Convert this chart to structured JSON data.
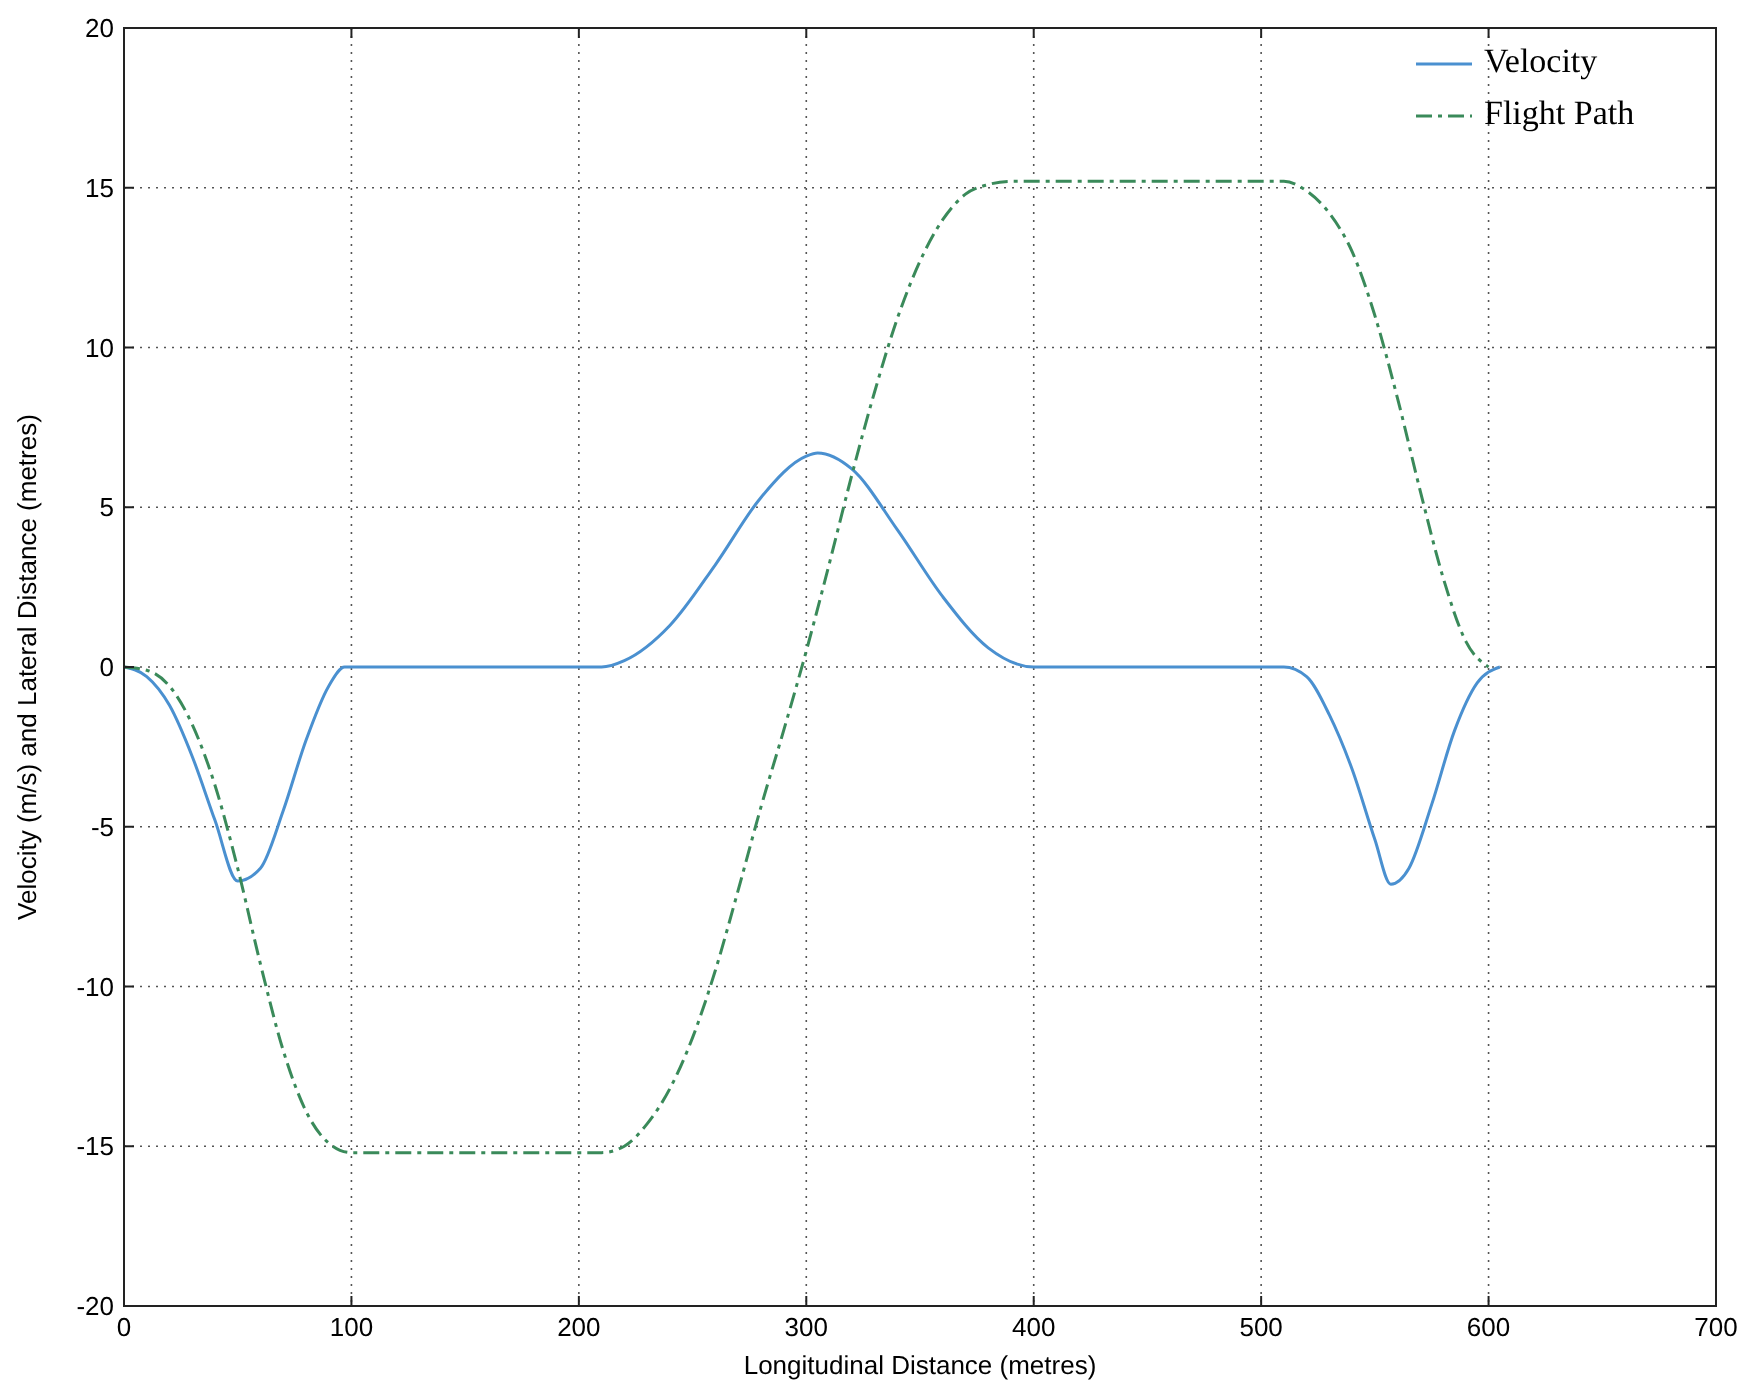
{
  "chart_data": {
    "type": "line",
    "xlabel": "Longitudinal Distance (metres)",
    "ylabel": "Velocity (m/s) and Lateral Distance (metres)",
    "xlim": [
      0,
      700
    ],
    "ylim": [
      -20,
      20
    ],
    "xticks": [
      0,
      100,
      200,
      300,
      400,
      500,
      600,
      700
    ],
    "yticks": [
      -20,
      -15,
      -10,
      -5,
      0,
      5,
      10,
      15,
      20
    ],
    "grid": true,
    "legend": "top right",
    "series": [
      {
        "name": "Velocity",
        "color": "#4a90d0",
        "line_style": "solid",
        "x": [
          0,
          10,
          20,
          30,
          40,
          50,
          60,
          70,
          80,
          90,
          97,
          150,
          210,
          220,
          240,
          260,
          280,
          300,
          305,
          320,
          340,
          360,
          380,
          400,
          450,
          510,
          520,
          530,
          540,
          550,
          557,
          565,
          575,
          585,
          595,
          605
        ],
        "values": [
          0,
          -0.3,
          -1.2,
          -2.8,
          -4.8,
          -6.7,
          -6.3,
          -4.5,
          -2.3,
          -0.6,
          0,
          0,
          0,
          0.2,
          1.3,
          3.2,
          5.3,
          6.6,
          6.7,
          6.2,
          4.3,
          2.2,
          0.6,
          0,
          0,
          0,
          -0.3,
          -1.5,
          -3.2,
          -5.4,
          -6.8,
          -6.3,
          -4.3,
          -2,
          -0.5,
          0
        ]
      },
      {
        "name": "Flight Path",
        "color": "#3a8a5a",
        "line_style": "dashdot",
        "x": [
          0,
          10,
          20,
          30,
          40,
          50,
          60,
          70,
          80,
          90,
          100,
          150,
          210,
          220,
          230,
          240,
          250,
          260,
          270,
          280,
          290,
          300,
          310,
          320,
          330,
          340,
          350,
          360,
          370,
          380,
          390,
          400,
          450,
          510,
          520,
          530,
          540,
          550,
          560,
          570,
          580,
          590,
          600
        ],
        "values": [
          0,
          -0.1,
          -0.6,
          -1.8,
          -3.7,
          -6.3,
          -9.3,
          -12,
          -13.9,
          -14.9,
          -15.2,
          -15.2,
          -15.2,
          -15,
          -14.3,
          -13.2,
          -11.6,
          -9.5,
          -7,
          -4.4,
          -2,
          0.5,
          3.2,
          6,
          8.6,
          10.9,
          12.7,
          14,
          14.8,
          15.1,
          15.2,
          15.2,
          15.2,
          15.2,
          14.9,
          14.2,
          13,
          11,
          8.4,
          5.5,
          2.8,
          0.8,
          0
        ]
      }
    ]
  }
}
